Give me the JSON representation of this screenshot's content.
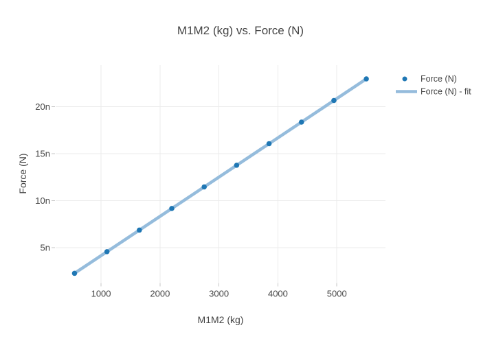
{
  "chart_data": {
    "type": "scatter",
    "title": "M1M2 (kg) vs. Force (N)",
    "xlabel": "M1M2 (kg)",
    "ylabel": "Force (N)",
    "xlim": [
      230,
      5825
    ],
    "ylim": [
      1.3,
      24.4
    ],
    "y_unit_prefix": "n",
    "grid": true,
    "legend_position": "top-right-outside",
    "x_ticks": [
      {
        "v": 1000,
        "label": "1000"
      },
      {
        "v": 2000,
        "label": "2000"
      },
      {
        "v": 3000,
        "label": "3000"
      },
      {
        "v": 4000,
        "label": "4000"
      },
      {
        "v": 5000,
        "label": "5000"
      }
    ],
    "y_ticks": [
      {
        "v": 5,
        "label": "5n"
      },
      {
        "v": 10,
        "label": "10n"
      },
      {
        "v": 15,
        "label": "15n"
      },
      {
        "v": 20,
        "label": "20n"
      }
    ],
    "series": [
      {
        "name": "Force (N)",
        "mode": "markers",
        "color": "#1f77b4",
        "marker_radius": 3.75,
        "x": [
          550,
          1100,
          1650,
          2200,
          2750,
          3300,
          3850,
          4400,
          4950,
          5500
        ],
        "y": [
          2.29,
          4.59,
          6.88,
          9.18,
          11.47,
          13.77,
          16.06,
          18.35,
          20.65,
          22.94
        ]
      },
      {
        "name": "Force (N) - fit",
        "mode": "line",
        "color": "#95bcdc",
        "line_width": 4.5,
        "x": [
          550,
          5500
        ],
        "y": [
          2.29,
          22.94
        ]
      }
    ],
    "colors": {
      "grid": "#ebebeb",
      "tick": "#c6c6c6",
      "text": "#444444",
      "background": "#ffffff"
    }
  }
}
